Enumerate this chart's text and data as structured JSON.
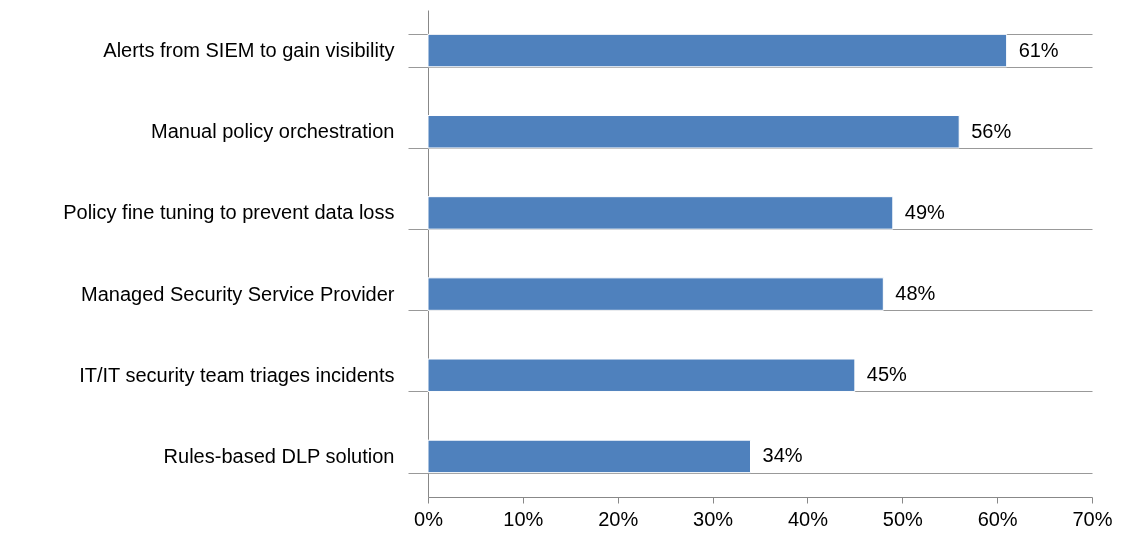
{
  "chart_data": {
    "type": "bar",
    "orientation": "horizontal",
    "categories": [
      "Alerts from SIEM to gain visibility",
      "Manual policy orchestration",
      "Policy fine tuning to prevent data loss",
      "Managed Security Service Provider",
      "IT/IT security team triages incidents",
      "Rules-based DLP solution"
    ],
    "values": [
      61,
      56,
      49,
      48,
      45,
      34
    ],
    "value_labels": [
      "61%",
      "56%",
      "49%",
      "48%",
      "45%",
      "34%"
    ],
    "color": "#4f81bd",
    "xlim": [
      0,
      70
    ],
    "xticks": [
      {
        "value": 0,
        "label": "0%"
      },
      {
        "value": 10,
        "label": "10%"
      },
      {
        "value": 20,
        "label": "20%"
      },
      {
        "value": 30,
        "label": "30%"
      },
      {
        "value": 40,
        "label": "40%"
      },
      {
        "value": 50,
        "label": "50%"
      },
      {
        "value": 60,
        "label": "60%"
      },
      {
        "value": 70,
        "label": "70%"
      }
    ],
    "grid": "y"
  }
}
